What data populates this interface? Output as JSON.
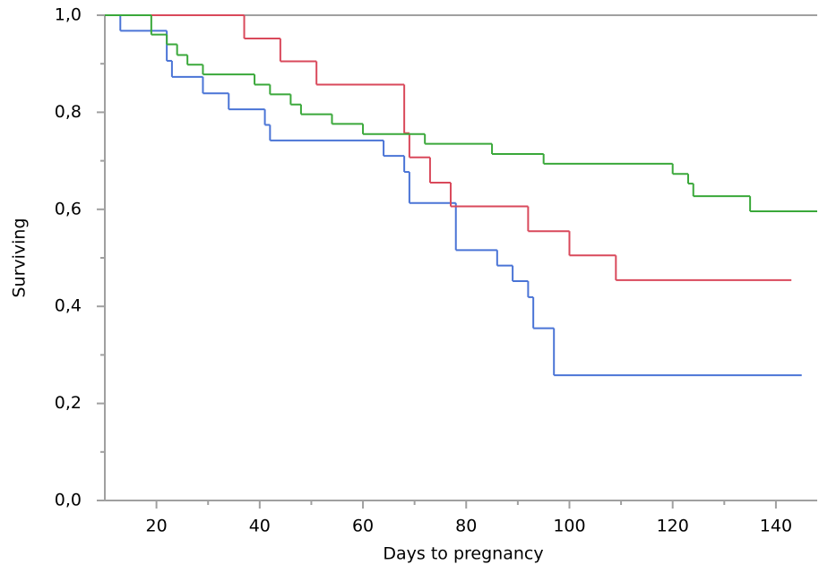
{
  "chart_data": {
    "type": "step",
    "xlabel": "Days to pregnancy",
    "ylabel": "Surviving",
    "xlim": [
      10,
      148
    ],
    "ylim": [
      0,
      1
    ],
    "xticks": [
      20,
      40,
      60,
      80,
      100,
      120,
      140
    ],
    "yticks": [
      {
        "value": 0,
        "label": "0,0"
      },
      {
        "value": 0.2,
        "label": "0,2"
      },
      {
        "value": 0.4,
        "label": "0,4"
      },
      {
        "value": 0.6,
        "label": "0,6"
      },
      {
        "value": 0.8,
        "label": "0,8"
      },
      {
        "value": 1,
        "label": "1,0"
      }
    ],
    "series": [
      {
        "color": "#4a74d6",
        "x": [
          10,
          13,
          22,
          23,
          29,
          34,
          41,
          42,
          64,
          68,
          69,
          78,
          86,
          89,
          92,
          93,
          97,
          145
        ],
        "values": [
          1,
          0.968,
          0.906,
          0.873,
          0.839,
          0.806,
          0.774,
          0.742,
          0.71,
          0.677,
          0.613,
          0.516,
          0.484,
          0.452,
          0.419,
          0.355,
          0.258,
          0.258
        ]
      },
      {
        "color": "#d9495b",
        "x": [
          10,
          37,
          44,
          51,
          68,
          69,
          73,
          77,
          92,
          100,
          109,
          143
        ],
        "values": [
          1,
          0.952,
          0.905,
          0.857,
          0.757,
          0.707,
          0.655,
          0.606,
          0.555,
          0.505,
          0.454,
          0.454
        ]
      },
      {
        "color": "#3aa83a",
        "x": [
          10,
          19,
          22,
          24,
          26,
          29,
          39,
          42,
          46,
          48,
          54,
          60,
          72,
          85,
          95,
          120,
          123,
          124,
          135,
          148
        ],
        "values": [
          1,
          0.96,
          0.94,
          0.918,
          0.898,
          0.878,
          0.857,
          0.837,
          0.816,
          0.796,
          0.776,
          0.755,
          0.735,
          0.714,
          0.694,
          0.673,
          0.653,
          0.627,
          0.596,
          0.596
        ]
      }
    ]
  }
}
